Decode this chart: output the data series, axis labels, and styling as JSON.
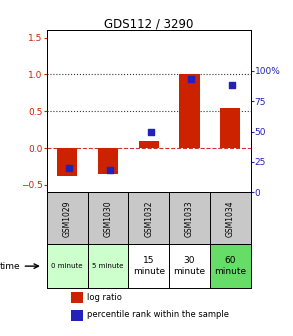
{
  "title": "GDS112 / 3290",
  "samples": [
    "GSM1029",
    "GSM1030",
    "GSM1032",
    "GSM1033",
    "GSM1034"
  ],
  "time_labels_small": [
    "0 minute",
    "5 minute"
  ],
  "time_labels_large": [
    "15\nminute",
    "30\nminute",
    "60\nminute"
  ],
  "time_colors": [
    "#ccffcc",
    "#ccffcc",
    "#ffffff",
    "#ffffff",
    "#66dd66"
  ],
  "log_ratio": [
    -0.38,
    -0.35,
    0.1,
    1.0,
    0.55
  ],
  "percentile_rank": [
    20.0,
    18.0,
    50.0,
    93.0,
    88.0
  ],
  "bar_color": "#cc2200",
  "dot_color": "#2222bb",
  "ylim_left": [
    -0.6,
    1.6
  ],
  "ylim_right": [
    0,
    133.33
  ],
  "yticks_left": [
    -0.5,
    0.0,
    0.5,
    1.0,
    1.5
  ],
  "yticks_right": [
    0,
    25,
    50,
    75,
    100
  ],
  "background_color": "#ffffff",
  "header_bg": "#c8c8c8",
  "bar_width": 0.5
}
